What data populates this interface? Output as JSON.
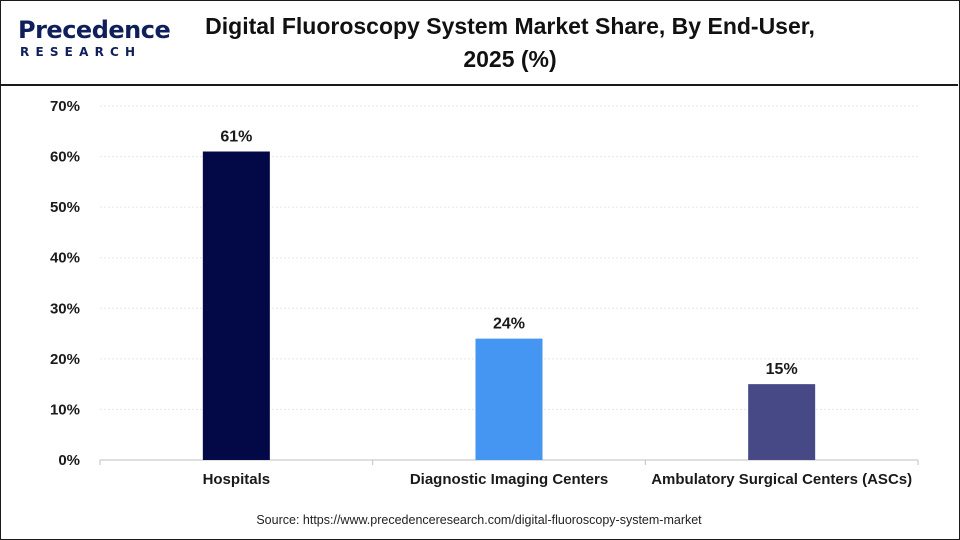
{
  "brand": {
    "name": "Precedence",
    "sub": "RESEARCH",
    "colors": {
      "primary": "#0f1f5c",
      "accent": "#3d8ef2"
    }
  },
  "title": "Digital Fluoroscopy System Market Share, By End-User, 2025 (%)",
  "source": "Source: https://www.precedenceresearch.com/digital-fluoroscopy-system-market",
  "chart_data": {
    "type": "bar",
    "title": "Digital Fluoroscopy System Market Share, By End-User, 2025 (%)",
    "categories": [
      "Hospitals",
      "Diagnostic Imaging Centers",
      "Ambulatory Surgical Centers (ASCs)"
    ],
    "values": [
      61,
      24,
      15
    ],
    "value_labels": [
      "61%",
      "24%",
      "15%"
    ],
    "colors": [
      "#030846",
      "#4496f2",
      "#464985"
    ],
    "ylim": [
      0,
      70
    ],
    "yticks": [
      0,
      10,
      20,
      30,
      40,
      50,
      60,
      70
    ],
    "ytick_labels": [
      "0%",
      "10%",
      "20%",
      "30%",
      "40%",
      "50%",
      "60%",
      "70%"
    ],
    "xlabel": "",
    "ylabel": "",
    "grid": true,
    "legend": "none"
  }
}
